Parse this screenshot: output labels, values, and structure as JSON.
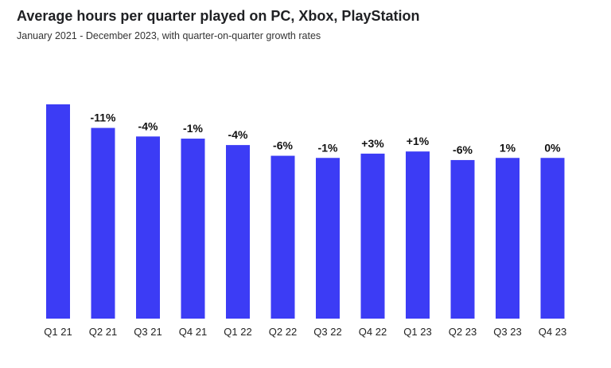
{
  "title": "Average hours per quarter played on PC, Xbox, PlayStation",
  "subtitle": "January 2021 - December 2023, with quarter-on-quarter growth rates",
  "colors": {
    "bar": "#3c3cf5"
  },
  "chart_data": {
    "type": "bar",
    "title": "Average hours per quarter played on PC, Xbox, PlayStation",
    "subtitle": "January 2021 - December 2023, with quarter-on-quarter growth rates",
    "categories": [
      "Q1 21",
      "Q2 21",
      "Q3 21",
      "Q4 21",
      "Q1 22",
      "Q2 22",
      "Q3 22",
      "Q4 22",
      "Q1 23",
      "Q2 23",
      "Q3 23",
      "Q4 23"
    ],
    "values": [
      100,
      89,
      85,
      84,
      81,
      76,
      75,
      77,
      78,
      74,
      75,
      75
    ],
    "data_labels": [
      "",
      "-11%",
      "-4%",
      "-1%",
      "-4%",
      "-6%",
      "-1%",
      "+3%",
      "+1%",
      "-6%",
      "1%",
      "0%"
    ],
    "ylim": [
      0,
      100
    ],
    "grid": false,
    "xlabel": "",
    "ylabel": ""
  }
}
